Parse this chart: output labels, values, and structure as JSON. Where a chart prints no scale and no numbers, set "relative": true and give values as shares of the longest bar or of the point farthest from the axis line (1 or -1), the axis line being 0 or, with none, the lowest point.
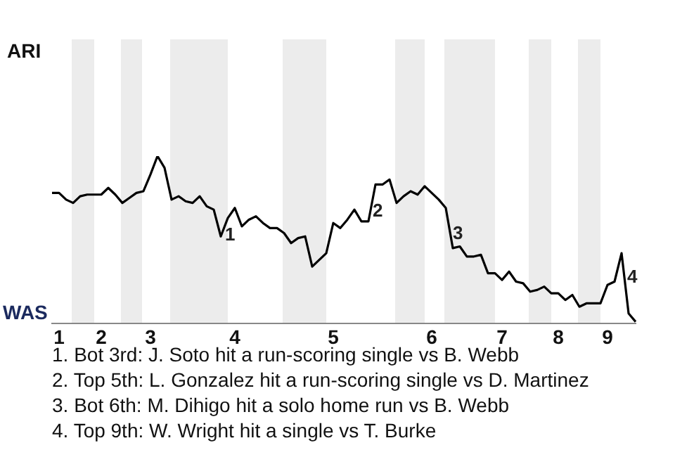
{
  "chart_data": {
    "type": "line",
    "relative": true,
    "categories": [
      null,
      "1",
      null,
      null,
      null,
      null,
      null,
      "2",
      null,
      null,
      null,
      null,
      null,
      null,
      "3",
      null,
      null,
      null,
      null,
      null,
      null,
      null,
      null,
      null,
      null,
      null,
      "4",
      null,
      null,
      null,
      null,
      null,
      null,
      null,
      null,
      null,
      null,
      null,
      null,
      null,
      "5",
      null,
      null,
      null,
      null,
      null,
      null,
      null,
      null,
      null,
      null,
      null,
      null,
      null,
      "6",
      null,
      null,
      null,
      null,
      null,
      null,
      null,
      null,
      null,
      "7",
      null,
      null,
      null,
      null,
      null,
      null,
      null,
      "8",
      null,
      null,
      null,
      null,
      null,
      null,
      "9",
      null,
      null,
      null,
      null
    ],
    "series": [
      {
        "color": "#000000",
        "values": [
          0.78,
          0.78,
          0.74,
          0.72,
          0.76,
          0.77,
          0.77,
          0.77,
          0.81,
          0.77,
          0.72,
          0.75,
          0.78,
          0.79,
          0.89,
          1,
          0.93,
          0.74,
          0.76,
          0.73,
          0.72,
          0.76,
          0.7,
          0.68,
          0.52,
          0.63,
          0.69,
          0.58,
          0.62,
          0.64,
          0.6,
          0.57,
          0.57,
          0.54,
          0.48,
          0.51,
          0.52,
          0.34,
          0.38,
          0.42,
          0.6,
          0.57,
          0.62,
          0.68,
          0.61,
          0.61,
          0.83,
          0.83,
          0.86,
          0.72,
          0.76,
          0.79,
          0.77,
          0.82,
          0.78,
          0.74,
          0.69,
          0.45,
          0.46,
          0.4,
          0.4,
          0.41,
          0.3,
          0.3,
          0.26,
          0.31,
          0.25,
          0.24,
          0.19,
          0.2,
          0.22,
          0.18,
          0.18,
          0.14,
          0.17,
          0.1,
          0.12,
          0.12,
          0.12,
          0.23,
          0.25,
          0.42,
          0.06,
          0.01
        ]
      }
    ],
    "marker": "none",
    "line_style": "solid",
    "legend": false,
    "annotations": [
      "ARI",
      "WAS",
      "1",
      "2",
      "3",
      "4",
      "1. Bot 3rd: J. Soto hit a run-scoring single vs B. Webb",
      "2. Top 5th: L. Gonzalez hit a run-scoring single vs D. Martinez",
      "3. Bot 6th: M. Dihigo hit a solo home run vs B. Webb",
      "4. Top 9th: W. Wright hit a single vs T. Burke"
    ]
  }
}
